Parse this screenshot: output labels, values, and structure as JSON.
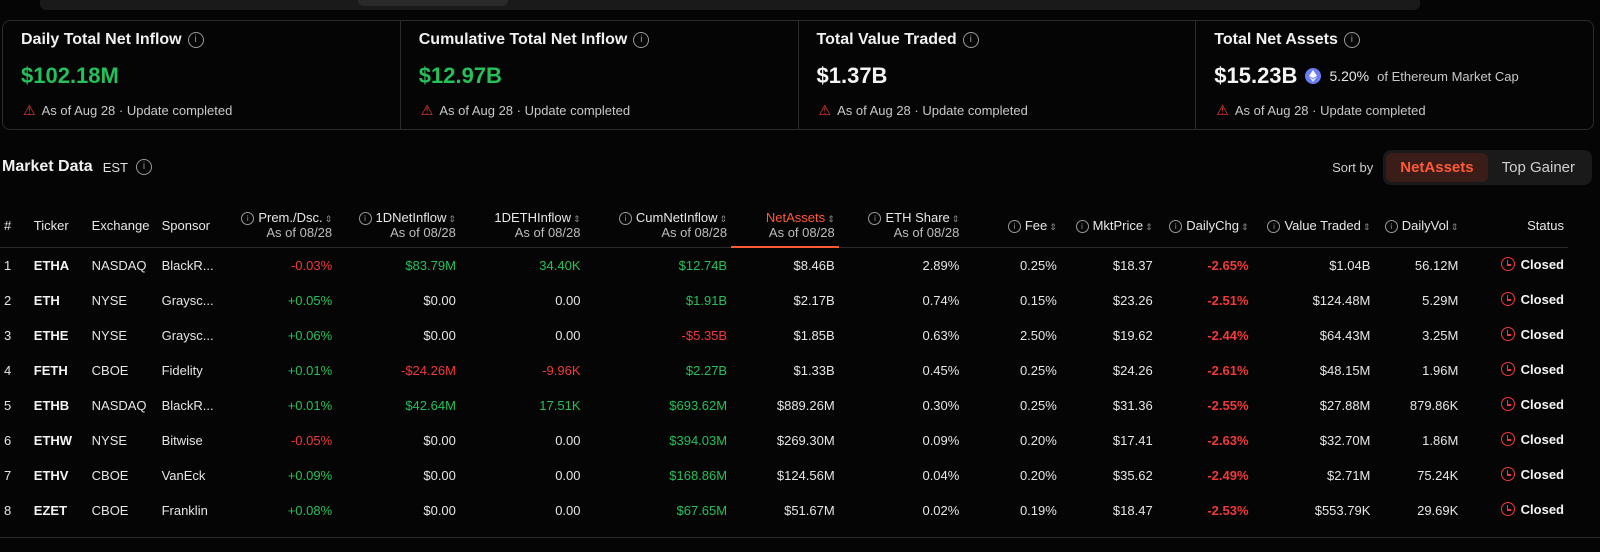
{
  "cards": [
    {
      "title": "Daily Total Net Inflow",
      "value": "$102.18M",
      "color": "green",
      "sub": "As of Aug 28 · Update completed"
    },
    {
      "title": "Cumulative Total Net Inflow",
      "value": "$12.97B",
      "color": "green",
      "sub": "As of Aug 28 · Update completed"
    },
    {
      "title": "Total Value Traded",
      "value": "$1.37B",
      "color": "white",
      "sub": "As of Aug 28 · Update completed"
    },
    {
      "title": "Total Net Assets",
      "value": "$15.23B",
      "color": "white",
      "pct": "5.20%",
      "pct_note": "of Ethereum Market Cap",
      "sub": "As of Aug 28 · Update completed"
    }
  ],
  "market": {
    "title": "Market Data",
    "tz": "EST",
    "sort_label": "Sort by",
    "sort_options": [
      "NetAssets",
      "Top Gainer"
    ]
  },
  "columns": [
    {
      "label": "#"
    },
    {
      "label": "Ticker"
    },
    {
      "label": "Exchange"
    },
    {
      "label": "Sponsor"
    },
    {
      "label": "Prem./Dsc.",
      "sub": "As of 08/28"
    },
    {
      "label": "1DNetInflow",
      "sub": "As of 08/28"
    },
    {
      "label": "1DETHInflow",
      "sub": "As of 08/28"
    },
    {
      "label": "CumNetInflow",
      "sub": "As of 08/28"
    },
    {
      "label": "NetAssets",
      "sub": "As of 08/28"
    },
    {
      "label": "ETH Share",
      "sub": "As of 08/28"
    },
    {
      "label": "Fee"
    },
    {
      "label": "MktPrice"
    },
    {
      "label": "DailyChg"
    },
    {
      "label": "Value Traded"
    },
    {
      "label": "DailyVol"
    },
    {
      "label": "Status"
    }
  ],
  "rows": [
    [
      "1",
      "ETHA",
      "NASDAQ",
      "BlackR...",
      "-0.03%",
      "$83.79M",
      "34.40K",
      "$12.74B",
      "$8.46B",
      "2.89%",
      "0.25%",
      "$18.37",
      "-2.65%",
      "$1.04B",
      "56.12M",
      "Closed"
    ],
    [
      "2",
      "ETH",
      "NYSE",
      "Graysc...",
      "+0.05%",
      "$0.00",
      "0.00",
      "$1.91B",
      "$2.17B",
      "0.74%",
      "0.15%",
      "$23.26",
      "-2.51%",
      "$124.48M",
      "5.29M",
      "Closed"
    ],
    [
      "3",
      "ETHE",
      "NYSE",
      "Graysc...",
      "+0.06%",
      "$0.00",
      "0.00",
      "-$5.35B",
      "$1.85B",
      "0.63%",
      "2.50%",
      "$19.62",
      "-2.44%",
      "$64.43M",
      "3.25M",
      "Closed"
    ],
    [
      "4",
      "FETH",
      "CBOE",
      "Fidelity",
      "+0.01%",
      "-$24.26M",
      "-9.96K",
      "$2.27B",
      "$1.33B",
      "0.45%",
      "0.25%",
      "$24.26",
      "-2.61%",
      "$48.15M",
      "1.96M",
      "Closed"
    ],
    [
      "5",
      "ETHB",
      "NASDAQ",
      "BlackR...",
      "+0.01%",
      "$42.64M",
      "17.51K",
      "$693.62M",
      "$889.26M",
      "0.30%",
      "0.25%",
      "$31.36",
      "-2.55%",
      "$27.88M",
      "879.86K",
      "Closed"
    ],
    [
      "6",
      "ETHW",
      "NYSE",
      "Bitwise",
      "-0.05%",
      "$0.00",
      "0.00",
      "$394.03M",
      "$269.30M",
      "0.09%",
      "0.20%",
      "$17.41",
      "-2.63%",
      "$32.70M",
      "1.86M",
      "Closed"
    ],
    [
      "7",
      "ETHV",
      "CBOE",
      "VanEck",
      "+0.09%",
      "$0.00",
      "0.00",
      "$168.86M",
      "$124.56M",
      "0.04%",
      "0.20%",
      "$35.62",
      "-2.49%",
      "$2.71M",
      "75.24K",
      "Closed"
    ],
    [
      "8",
      "EZET",
      "CBOE",
      "Franklin",
      "+0.08%",
      "$0.00",
      "0.00",
      "$67.65M",
      "$51.67M",
      "0.02%",
      "0.19%",
      "$18.47",
      "-2.53%",
      "$553.79K",
      "29.69K",
      "Closed"
    ]
  ]
}
